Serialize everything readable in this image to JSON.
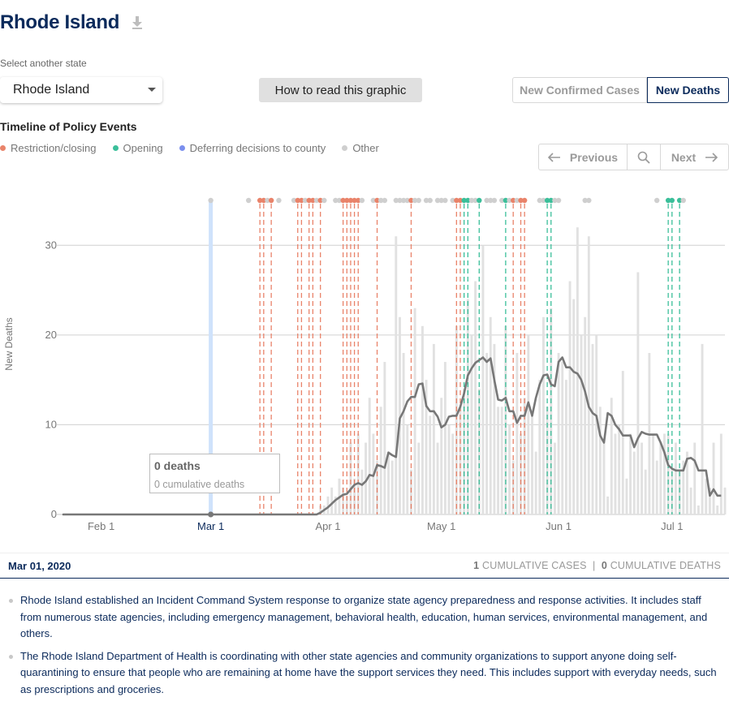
{
  "header": {
    "title": "Rhode Island",
    "download_icon": "download-icon"
  },
  "state_select": {
    "label": "Select another state",
    "value": "Rhode Island"
  },
  "how_button": {
    "label": "How to read this graphic"
  },
  "toggle": {
    "cases": "New Confirmed Cases",
    "deaths": "New Deaths",
    "active": "deaths"
  },
  "timeline": {
    "title": "Timeline of Policy Events",
    "legend": [
      {
        "label": "Restriction/closing",
        "color": "#e9836a"
      },
      {
        "label": "Opening",
        "color": "#3bbf9a"
      },
      {
        "label": "Deferring decisions to county",
        "color": "#7b8fee"
      },
      {
        "label": "Other",
        "color": "#cfcfcf"
      }
    ]
  },
  "pager": {
    "previous": "Previous",
    "next": "Next"
  },
  "chart_data": {
    "type": "bar",
    "ylabel": "New Deaths",
    "xlabel": "",
    "ylim": [
      0,
      35
    ],
    "yticks": [
      0,
      10,
      20,
      30
    ],
    "x_start": "2020-01-22",
    "x_end": "2020-07-15",
    "xticks": [
      {
        "date": "2020-02-01",
        "label": "Feb 1"
      },
      {
        "date": "2020-03-01",
        "label": "Mar 1"
      },
      {
        "date": "2020-04-01",
        "label": "Apr 1"
      },
      {
        "date": "2020-05-01",
        "label": "May 1"
      },
      {
        "date": "2020-06-01",
        "label": "Jun 1"
      },
      {
        "date": "2020-07-01",
        "label": "Jul 1"
      }
    ],
    "selected_date": "2020-03-01",
    "bars": {
      "start_date": "2020-03-30",
      "values": [
        1,
        1,
        2,
        3,
        2,
        4,
        3,
        2,
        8,
        4,
        9,
        5,
        8,
        13,
        9,
        6,
        12,
        17,
        7,
        6,
        31,
        22,
        18,
        10,
        5,
        23,
        8,
        21,
        15,
        11,
        19,
        8,
        13,
        17,
        10,
        9,
        21,
        12,
        14,
        24,
        20,
        26,
        14,
        30,
        18,
        22,
        19,
        12,
        12,
        21,
        10,
        6,
        18,
        9,
        13,
        20,
        11,
        7,
        15,
        22,
        12,
        23,
        8,
        18,
        17,
        15,
        26,
        24,
        32,
        20,
        22,
        31,
        19,
        20,
        12,
        8,
        2,
        13,
        9,
        10,
        16,
        4,
        9,
        7,
        27,
        8,
        5,
        18,
        9,
        6,
        8,
        9,
        9,
        5,
        8,
        5,
        6,
        7,
        3,
        8,
        1,
        19,
        4,
        3,
        8,
        1,
        9,
        3
      ]
    },
    "line": {
      "start_date": "2020-03-30",
      "values": [
        0.2,
        0.5,
        0.8,
        1.2,
        1.6,
        1.9,
        2.2,
        2.3,
        2.8,
        3.3,
        3.5,
        3.3,
        3.7,
        4.4,
        4.3,
        5.5,
        5.4,
        5.2,
        6.9,
        6.6,
        6.4,
        10.7,
        11.5,
        12.6,
        13.1,
        13.1,
        14.5,
        14.6,
        12.1,
        11.5,
        11.5,
        10.9,
        9.7,
        10.0,
        10.9,
        11.0,
        11.0,
        12.0,
        13.5,
        15.5,
        16.3,
        16.9,
        17.2,
        17.5,
        17.0,
        17.4,
        15.0,
        12.8,
        12.7,
        13.0,
        11.5,
        11.5,
        10.2,
        11.0,
        11.0,
        12.5,
        11.0,
        13.0,
        14.5,
        15.5,
        15.6,
        14.5,
        14.3,
        17.0,
        17.5,
        16.4,
        16.4,
        15.9,
        15.7,
        15.0,
        13.7,
        12.0,
        11.3,
        11.0,
        8.8,
        8.0,
        11.3,
        11.0,
        10.0,
        9.5,
        8.8,
        8.8,
        8.8,
        7.5,
        8.5,
        9.2,
        9.0,
        8.9,
        8.9,
        8.9,
        8.0,
        6.9,
        5.5,
        5.1,
        4.9,
        4.9,
        4.9,
        6.2,
        6.3,
        6.0,
        4.9,
        4.9,
        4.9,
        2.1,
        2.8,
        2.1,
        2.1
      ]
    },
    "policy_events": [
      {
        "date": "2020-03-01",
        "type": "other"
      },
      {
        "date": "2020-03-11",
        "type": "other"
      },
      {
        "date": "2020-03-14",
        "type": "restriction"
      },
      {
        "date": "2020-03-15",
        "type": "restriction"
      },
      {
        "date": "2020-03-16",
        "type": "other"
      },
      {
        "date": "2020-03-17",
        "type": "restriction"
      },
      {
        "date": "2020-03-19",
        "type": "other"
      },
      {
        "date": "2020-03-23",
        "type": "other"
      },
      {
        "date": "2020-03-24",
        "type": "restriction"
      },
      {
        "date": "2020-03-25",
        "type": "restriction"
      },
      {
        "date": "2020-03-26",
        "type": "other"
      },
      {
        "date": "2020-03-27",
        "type": "restriction"
      },
      {
        "date": "2020-03-28",
        "type": "restriction"
      },
      {
        "date": "2020-03-29",
        "type": "other"
      },
      {
        "date": "2020-03-30",
        "type": "restriction"
      },
      {
        "date": "2020-03-31",
        "type": "other"
      },
      {
        "date": "2020-04-03",
        "type": "other"
      },
      {
        "date": "2020-04-04",
        "type": "other"
      },
      {
        "date": "2020-04-05",
        "type": "restriction"
      },
      {
        "date": "2020-04-06",
        "type": "restriction"
      },
      {
        "date": "2020-04-07",
        "type": "restriction"
      },
      {
        "date": "2020-04-08",
        "type": "restriction"
      },
      {
        "date": "2020-04-09",
        "type": "restriction"
      },
      {
        "date": "2020-04-10",
        "type": "other"
      },
      {
        "date": "2020-04-13",
        "type": "other"
      },
      {
        "date": "2020-04-14",
        "type": "restriction"
      },
      {
        "date": "2020-04-15",
        "type": "other"
      },
      {
        "date": "2020-04-16",
        "type": "other"
      },
      {
        "date": "2020-04-19",
        "type": "other"
      },
      {
        "date": "2020-04-20",
        "type": "other"
      },
      {
        "date": "2020-04-21",
        "type": "other"
      },
      {
        "date": "2020-04-22",
        "type": "other"
      },
      {
        "date": "2020-04-23",
        "type": "restriction"
      },
      {
        "date": "2020-04-24",
        "type": "other"
      },
      {
        "date": "2020-04-25",
        "type": "other"
      },
      {
        "date": "2020-04-27",
        "type": "other"
      },
      {
        "date": "2020-04-28",
        "type": "other"
      },
      {
        "date": "2020-04-30",
        "type": "other"
      },
      {
        "date": "2020-05-01",
        "type": "other"
      },
      {
        "date": "2020-05-02",
        "type": "other"
      },
      {
        "date": "2020-05-04",
        "type": "other"
      },
      {
        "date": "2020-05-05",
        "type": "restriction"
      },
      {
        "date": "2020-05-06",
        "type": "restriction"
      },
      {
        "date": "2020-05-07",
        "type": "opening"
      },
      {
        "date": "2020-05-08",
        "type": "opening"
      },
      {
        "date": "2020-05-09",
        "type": "other"
      },
      {
        "date": "2020-05-10",
        "type": "other"
      },
      {
        "date": "2020-05-11",
        "type": "opening"
      },
      {
        "date": "2020-05-13",
        "type": "other"
      },
      {
        "date": "2020-05-14",
        "type": "other"
      },
      {
        "date": "2020-05-15",
        "type": "other"
      },
      {
        "date": "2020-05-17",
        "type": "other"
      },
      {
        "date": "2020-05-18",
        "type": "opening"
      },
      {
        "date": "2020-05-19",
        "type": "other"
      },
      {
        "date": "2020-05-20",
        "type": "restriction"
      },
      {
        "date": "2020-05-21",
        "type": "other"
      },
      {
        "date": "2020-05-22",
        "type": "restriction"
      },
      {
        "date": "2020-05-23",
        "type": "restriction"
      },
      {
        "date": "2020-05-27",
        "type": "other"
      },
      {
        "date": "2020-05-28",
        "type": "other"
      },
      {
        "date": "2020-05-29",
        "type": "opening"
      },
      {
        "date": "2020-05-30",
        "type": "opening"
      },
      {
        "date": "2020-05-31",
        "type": "other"
      },
      {
        "date": "2020-06-01",
        "type": "other"
      },
      {
        "date": "2020-06-08",
        "type": "other"
      },
      {
        "date": "2020-06-09",
        "type": "other"
      },
      {
        "date": "2020-06-27",
        "type": "other"
      },
      {
        "date": "2020-06-30",
        "type": "opening"
      },
      {
        "date": "2020-07-01",
        "type": "opening"
      },
      {
        "date": "2020-07-03",
        "type": "opening"
      },
      {
        "date": "2020-07-04",
        "type": "other"
      }
    ],
    "tooltip": {
      "title": "0 deaths",
      "subtitle": "0 cumulative deaths"
    }
  },
  "footer": {
    "date": "Mar 01, 2020",
    "cum_cases_value": "1",
    "cum_cases_label": "CUMULATIVE CASES",
    "separator": "|",
    "cum_deaths_value": "0",
    "cum_deaths_label": "CUMULATIVE DEATHS"
  },
  "notes": [
    "Rhode Island established an Incident Command System response to organize state agency preparedness and response activities. It includes staff from numerous state agencies, including emergency management, behavioral health, education, human services, environmental management, and others.",
    "The Rhode Island Department of Health is coordinating with other state agencies and community organizations to support anyone doing self-quarantining to ensure that people who are remaining at home have the support services they need. This includes support with everyday needs, such as prescriptions and groceries."
  ]
}
